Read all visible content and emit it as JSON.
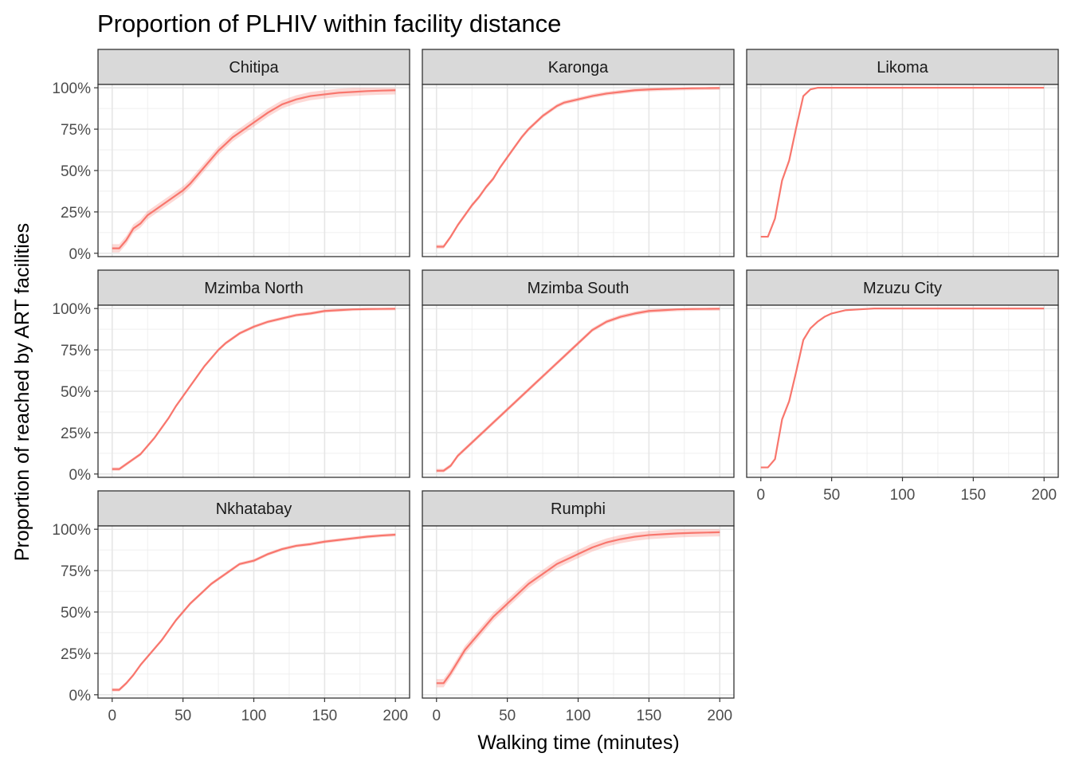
{
  "chart_data": {
    "type": "line",
    "title": "Proportion of PLHIV within facility distance",
    "xlabel": "Walking time (minutes)",
    "ylabel": "Proportion of reached by ART facilities",
    "xlim": [
      -10,
      210
    ],
    "ylim": [
      -0.02,
      1.02
    ],
    "x_ticks": [
      0,
      50,
      100,
      150,
      200
    ],
    "x_tick_labels": [
      "0",
      "50",
      "100",
      "150",
      "200"
    ],
    "y_ticks": [
      0,
      0.25,
      0.5,
      0.75,
      1.0
    ],
    "y_tick_labels": [
      "0%",
      "25%",
      "50%",
      "75%",
      "100%"
    ],
    "grid": true,
    "line_color": "#f8766d",
    "ribbon_color": "#f8766d",
    "strip_fill": "#d9d9d9",
    "panels": [
      {
        "name": "Chitipa",
        "x": [
          0,
          5,
          10,
          15,
          20,
          25,
          30,
          35,
          40,
          45,
          50,
          55,
          60,
          65,
          70,
          75,
          80,
          85,
          90,
          95,
          100,
          110,
          120,
          130,
          140,
          150,
          160,
          170,
          180,
          190,
          200
        ],
        "y": [
          0.03,
          0.03,
          0.08,
          0.15,
          0.18,
          0.23,
          0.26,
          0.29,
          0.32,
          0.35,
          0.38,
          0.42,
          0.47,
          0.52,
          0.57,
          0.62,
          0.66,
          0.7,
          0.73,
          0.76,
          0.79,
          0.85,
          0.9,
          0.93,
          0.95,
          0.96,
          0.97,
          0.975,
          0.98,
          0.983,
          0.985
        ],
        "ribbon": 0.025
      },
      {
        "name": "Karonga",
        "x": [
          0,
          5,
          10,
          15,
          20,
          25,
          30,
          35,
          40,
          45,
          50,
          55,
          60,
          65,
          70,
          75,
          80,
          85,
          90,
          100,
          110,
          120,
          130,
          140,
          150,
          160,
          170,
          180,
          190,
          200
        ],
        "y": [
          0.04,
          0.04,
          0.1,
          0.17,
          0.23,
          0.29,
          0.34,
          0.4,
          0.45,
          0.52,
          0.58,
          0.64,
          0.7,
          0.75,
          0.79,
          0.83,
          0.86,
          0.89,
          0.91,
          0.93,
          0.95,
          0.965,
          0.975,
          0.985,
          0.99,
          0.993,
          0.995,
          0.997,
          0.998,
          0.999
        ],
        "ribbon": 0.012
      },
      {
        "name": "Likoma",
        "x": [
          0,
          5,
          10,
          15,
          20,
          25,
          30,
          35,
          40,
          50,
          100,
          150,
          200
        ],
        "y": [
          0.1,
          0.1,
          0.21,
          0.44,
          0.56,
          0.76,
          0.95,
          0.99,
          1.0,
          1.0,
          1.0,
          1.0,
          1.0
        ],
        "ribbon": 0.0
      },
      {
        "name": "Mzimba North",
        "x": [
          0,
          5,
          10,
          15,
          20,
          25,
          30,
          35,
          40,
          45,
          50,
          55,
          60,
          65,
          70,
          75,
          80,
          85,
          90,
          95,
          100,
          110,
          120,
          130,
          140,
          150,
          160,
          170,
          180,
          190,
          200
        ],
        "y": [
          0.03,
          0.03,
          0.06,
          0.09,
          0.12,
          0.17,
          0.22,
          0.28,
          0.34,
          0.41,
          0.47,
          0.53,
          0.59,
          0.65,
          0.7,
          0.75,
          0.79,
          0.82,
          0.85,
          0.87,
          0.89,
          0.92,
          0.94,
          0.96,
          0.97,
          0.985,
          0.99,
          0.995,
          0.997,
          0.998,
          0.999
        ],
        "ribbon": 0.01
      },
      {
        "name": "Mzimba South",
        "x": [
          0,
          5,
          10,
          15,
          20,
          25,
          30,
          35,
          40,
          45,
          50,
          55,
          60,
          65,
          70,
          75,
          80,
          85,
          90,
          95,
          100,
          110,
          120,
          130,
          140,
          150,
          160,
          170,
          180,
          190,
          200
        ],
        "y": [
          0.02,
          0.02,
          0.05,
          0.11,
          0.15,
          0.19,
          0.23,
          0.27,
          0.31,
          0.35,
          0.39,
          0.43,
          0.47,
          0.51,
          0.55,
          0.59,
          0.63,
          0.67,
          0.71,
          0.75,
          0.79,
          0.87,
          0.92,
          0.95,
          0.97,
          0.985,
          0.99,
          0.995,
          0.997,
          0.998,
          0.999
        ],
        "ribbon": 0.012
      },
      {
        "name": "Mzuzu City",
        "x": [
          0,
          5,
          10,
          15,
          20,
          25,
          30,
          35,
          40,
          45,
          50,
          55,
          60,
          70,
          80,
          100,
          150,
          200
        ],
        "y": [
          0.04,
          0.04,
          0.09,
          0.33,
          0.44,
          0.62,
          0.81,
          0.88,
          0.92,
          0.95,
          0.97,
          0.98,
          0.99,
          0.995,
          1.0,
          1.0,
          1.0,
          1.0
        ],
        "ribbon": 0.0
      },
      {
        "name": "Nkhatabay",
        "x": [
          0,
          5,
          10,
          15,
          20,
          25,
          30,
          35,
          40,
          45,
          50,
          55,
          60,
          65,
          70,
          75,
          80,
          85,
          90,
          95,
          100,
          110,
          120,
          130,
          140,
          150,
          160,
          170,
          180,
          190,
          200
        ],
        "y": [
          0.03,
          0.03,
          0.07,
          0.12,
          0.18,
          0.23,
          0.28,
          0.33,
          0.39,
          0.45,
          0.5,
          0.55,
          0.59,
          0.63,
          0.67,
          0.7,
          0.73,
          0.76,
          0.79,
          0.8,
          0.81,
          0.85,
          0.88,
          0.9,
          0.91,
          0.925,
          0.935,
          0.945,
          0.955,
          0.962,
          0.967
        ],
        "ribbon": 0.01
      },
      {
        "name": "Rumphi",
        "x": [
          0,
          5,
          10,
          15,
          20,
          25,
          30,
          35,
          40,
          45,
          50,
          55,
          60,
          65,
          70,
          75,
          80,
          85,
          90,
          95,
          100,
          110,
          120,
          130,
          140,
          150,
          160,
          170,
          180,
          190,
          200
        ],
        "y": [
          0.07,
          0.07,
          0.13,
          0.2,
          0.27,
          0.32,
          0.37,
          0.42,
          0.47,
          0.51,
          0.55,
          0.59,
          0.63,
          0.67,
          0.7,
          0.73,
          0.76,
          0.79,
          0.81,
          0.83,
          0.85,
          0.89,
          0.92,
          0.94,
          0.955,
          0.965,
          0.97,
          0.975,
          0.978,
          0.98,
          0.982
        ],
        "ribbon": 0.025
      }
    ]
  }
}
